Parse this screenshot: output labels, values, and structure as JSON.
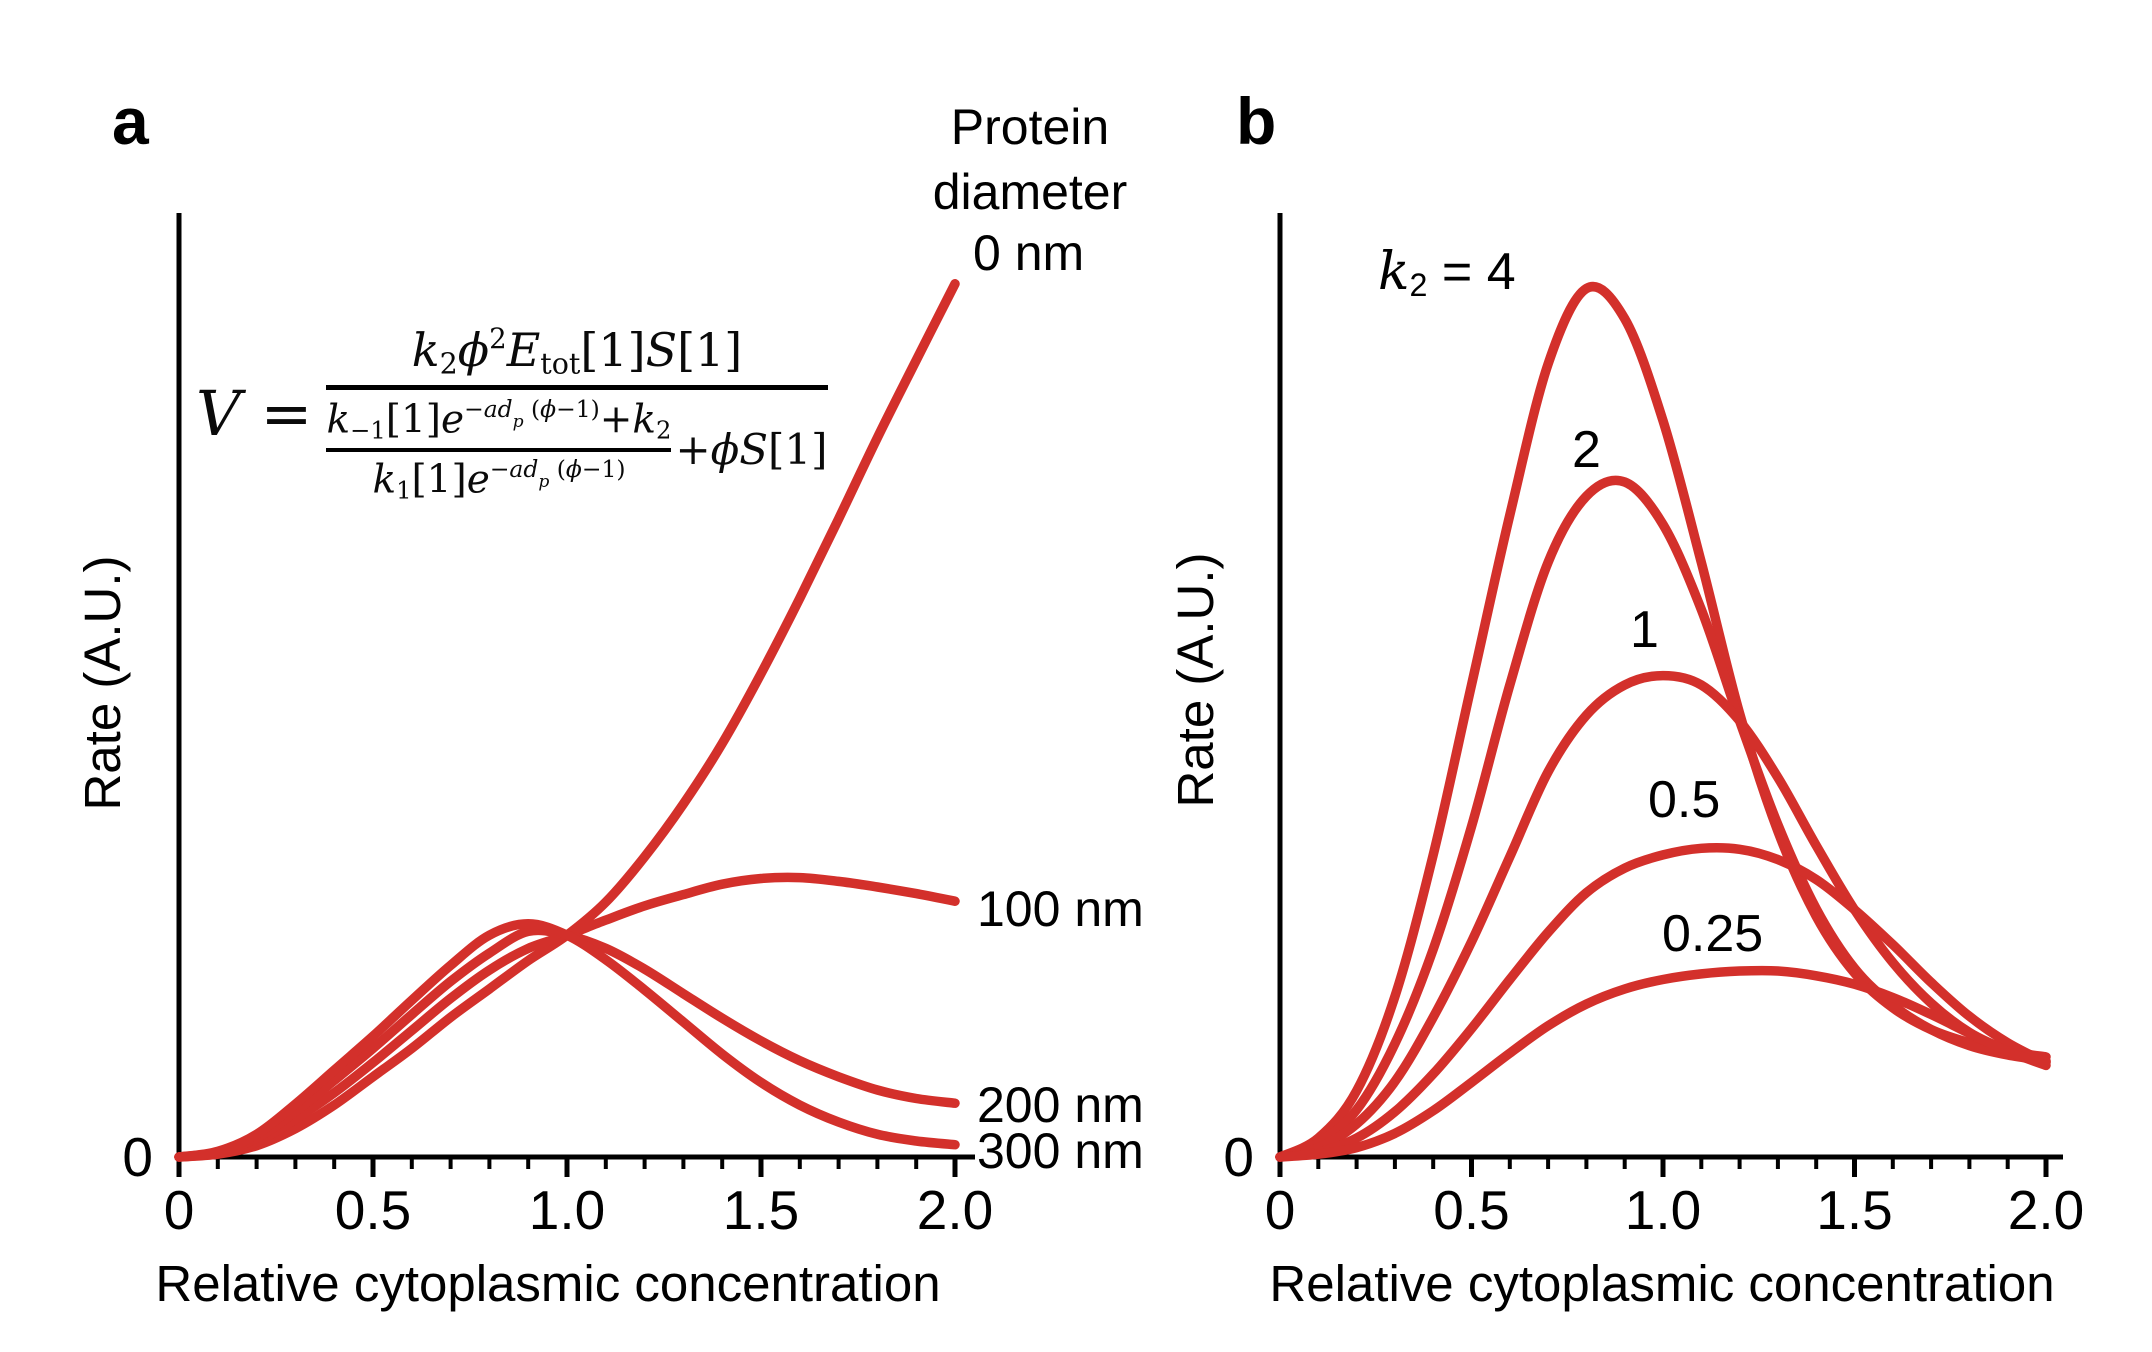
{
  "figure": {
    "panel_a_letter": "a",
    "panel_b_letter": "b",
    "red": "#d3302b",
    "black": "#000000"
  },
  "equation": {
    "lhs": [
      {
        "t": "V",
        "s": "i"
      },
      {
        "t": " = ",
        "s": "n"
      }
    ],
    "numerator": [
      {
        "t": "k",
        "s": "i"
      },
      {
        "t": "2",
        "s": "sub"
      },
      {
        "t": "ϕ",
        "s": "i"
      },
      {
        "t": "2",
        "s": "sup"
      },
      {
        "t": "E",
        "s": "i"
      },
      {
        "t": "tot",
        "s": "sub"
      },
      {
        "t": "[1]",
        "s": "n"
      },
      {
        "t": "S",
        "s": "i"
      },
      {
        "t": "[1]",
        "s": "n"
      }
    ],
    "inner_numerator": [
      {
        "t": "k",
        "s": "i"
      },
      {
        "t": "−1",
        "s": "sub"
      },
      {
        "t": "[1]",
        "s": "n"
      },
      {
        "t": "e",
        "s": "i"
      },
      {
        "t": "−",
        "s": "sup"
      },
      {
        "t": "ad",
        "s": "supi"
      },
      {
        "t": "p",
        "s": "supsub"
      },
      {
        "t": " (",
        "s": "sup"
      },
      {
        "t": "ϕ",
        "s": "supi"
      },
      {
        "t": "−1)",
        "s": "sup"
      },
      {
        "t": "+",
        "s": "n"
      },
      {
        "t": "k",
        "s": "i"
      },
      {
        "t": "2",
        "s": "sub"
      }
    ],
    "inner_denominator": [
      {
        "t": "k",
        "s": "i"
      },
      {
        "t": "1",
        "s": "sub"
      },
      {
        "t": "[1]",
        "s": "n"
      },
      {
        "t": "e",
        "s": "i"
      },
      {
        "t": "−",
        "s": "sup"
      },
      {
        "t": "ad",
        "s": "supi"
      },
      {
        "t": "p",
        "s": "supsub"
      },
      {
        "t": " (",
        "s": "sup"
      },
      {
        "t": "ϕ",
        "s": "supi"
      },
      {
        "t": "−1)",
        "s": "sup"
      }
    ],
    "tail": [
      {
        "t": "+",
        "s": "n"
      },
      {
        "t": "ϕS",
        "s": "i"
      },
      {
        "t": "[1]",
        "s": "n"
      }
    ]
  },
  "chart_data": [
    {
      "panel": "a",
      "type": "line",
      "title": "",
      "xlabel": "Relative cytoplasmic concentration",
      "ylabel": "Rate (A.U.)",
      "legend_title_lines": [
        "Protein",
        "diameter"
      ],
      "xlim": [
        0,
        2
      ],
      "ylim": [
        0,
        1
      ],
      "grid": false,
      "x_ticks": [
        {
          "v": 0,
          "label": "0"
        },
        {
          "v": 0.5,
          "label": "0.5"
        },
        {
          "v": 1,
          "label": "1.0"
        },
        {
          "v": 1.5,
          "label": "1.5"
        },
        {
          "v": 2,
          "label": "2.0"
        }
      ],
      "y_ticks": [
        {
          "v": 0,
          "label": "0"
        }
      ],
      "minor_tick_step": 0.1,
      "x": [
        0,
        0.1,
        0.2,
        0.3,
        0.4,
        0.5,
        0.6,
        0.7,
        0.8,
        0.9,
        1.0,
        1.1,
        1.2,
        1.3,
        1.4,
        1.5,
        1.6,
        1.7,
        1.8,
        1.9,
        2.0
      ],
      "series": [
        {
          "name": "0 nm",
          "values": [
            0,
            0.003,
            0.012,
            0.03,
            0.055,
            0.085,
            0.115,
            0.148,
            0.178,
            0.208,
            0.235,
            0.27,
            0.318,
            0.374,
            0.438,
            0.512,
            0.592,
            0.676,
            0.762,
            0.844,
            0.925
          ]
        },
        {
          "name": "100 nm",
          "values": [
            0,
            0.004,
            0.016,
            0.04,
            0.068,
            0.1,
            0.134,
            0.168,
            0.198,
            0.221,
            0.235,
            0.251,
            0.266,
            0.278,
            0.289,
            0.295,
            0.296,
            0.292,
            0.286,
            0.279,
            0.271
          ]
        },
        {
          "name": "200 nm",
          "values": [
            0,
            0.005,
            0.02,
            0.048,
            0.081,
            0.115,
            0.151,
            0.186,
            0.216,
            0.239,
            0.235,
            0.221,
            0.199,
            0.173,
            0.147,
            0.123,
            0.102,
            0.085,
            0.071,
            0.062,
            0.057
          ]
        },
        {
          "name": "300 nm",
          "values": [
            0,
            0.006,
            0.024,
            0.056,
            0.092,
            0.128,
            0.166,
            0.203,
            0.235,
            0.247,
            0.235,
            0.209,
            0.177,
            0.143,
            0.109,
            0.079,
            0.055,
            0.037,
            0.024,
            0.017,
            0.013
          ]
        }
      ]
    },
    {
      "panel": "b",
      "type": "line",
      "title": "",
      "xlabel": "Relative cytoplasmic concentration",
      "ylabel": "Rate (A.U.)",
      "k2_prefix_tokens": [
        {
          "t": "k",
          "s": "i"
        },
        {
          "t": "2",
          "s": "sub"
        },
        {
          "t": " = ",
          "s": "n"
        }
      ],
      "xlim": [
        0,
        2
      ],
      "ylim": [
        0,
        1
      ],
      "grid": false,
      "x_ticks": [
        {
          "v": 0,
          "label": "0"
        },
        {
          "v": 0.5,
          "label": "0.5"
        },
        {
          "v": 1,
          "label": "1.0"
        },
        {
          "v": 1.5,
          "label": "1.5"
        },
        {
          "v": 2,
          "label": "2.0"
        }
      ],
      "y_ticks": [
        {
          "v": 0,
          "label": "0"
        }
      ],
      "minor_tick_step": 0.1,
      "x": [
        0,
        0.1,
        0.2,
        0.3,
        0.4,
        0.5,
        0.6,
        0.7,
        0.8,
        0.9,
        1.0,
        1.1,
        1.2,
        1.3,
        1.4,
        1.5,
        1.6,
        1.7,
        1.8,
        1.9,
        2.0
      ],
      "series": [
        {
          "name": "4",
          "values": [
            0,
            0.02,
            0.07,
            0.17,
            0.32,
            0.5,
            0.68,
            0.84,
            0.92,
            0.888,
            0.78,
            0.63,
            0.47,
            0.345,
            0.255,
            0.195,
            0.158,
            0.135,
            0.121,
            0.112,
            0.106
          ]
        },
        {
          "name": "2",
          "values": [
            0,
            0.015,
            0.05,
            0.12,
            0.22,
            0.35,
            0.5,
            0.63,
            0.7,
            0.715,
            0.67,
            0.58,
            0.462,
            0.352,
            0.263,
            0.2,
            0.161,
            0.135,
            0.118,
            0.108,
            0.102
          ]
        },
        {
          "name": "1",
          "values": [
            0,
            0.01,
            0.035,
            0.08,
            0.148,
            0.228,
            0.318,
            0.408,
            0.468,
            0.5,
            0.51,
            0.5,
            0.462,
            0.402,
            0.33,
            0.262,
            0.206,
            0.163,
            0.132,
            0.113,
            0.101
          ]
        },
        {
          "name": "0.5",
          "values": [
            0,
            0.005,
            0.02,
            0.048,
            0.088,
            0.136,
            0.188,
            0.238,
            0.28,
            0.306,
            0.32,
            0.327,
            0.326,
            0.315,
            0.294,
            0.262,
            0.225,
            0.185,
            0.149,
            0.121,
            0.1
          ]
        },
        {
          "name": "0.25",
          "values": [
            0,
            0.003,
            0.01,
            0.025,
            0.049,
            0.079,
            0.11,
            0.139,
            0.162,
            0.178,
            0.188,
            0.194,
            0.197,
            0.197,
            0.192,
            0.183,
            0.169,
            0.151,
            0.131,
            0.112,
            0.097
          ]
        }
      ]
    }
  ]
}
